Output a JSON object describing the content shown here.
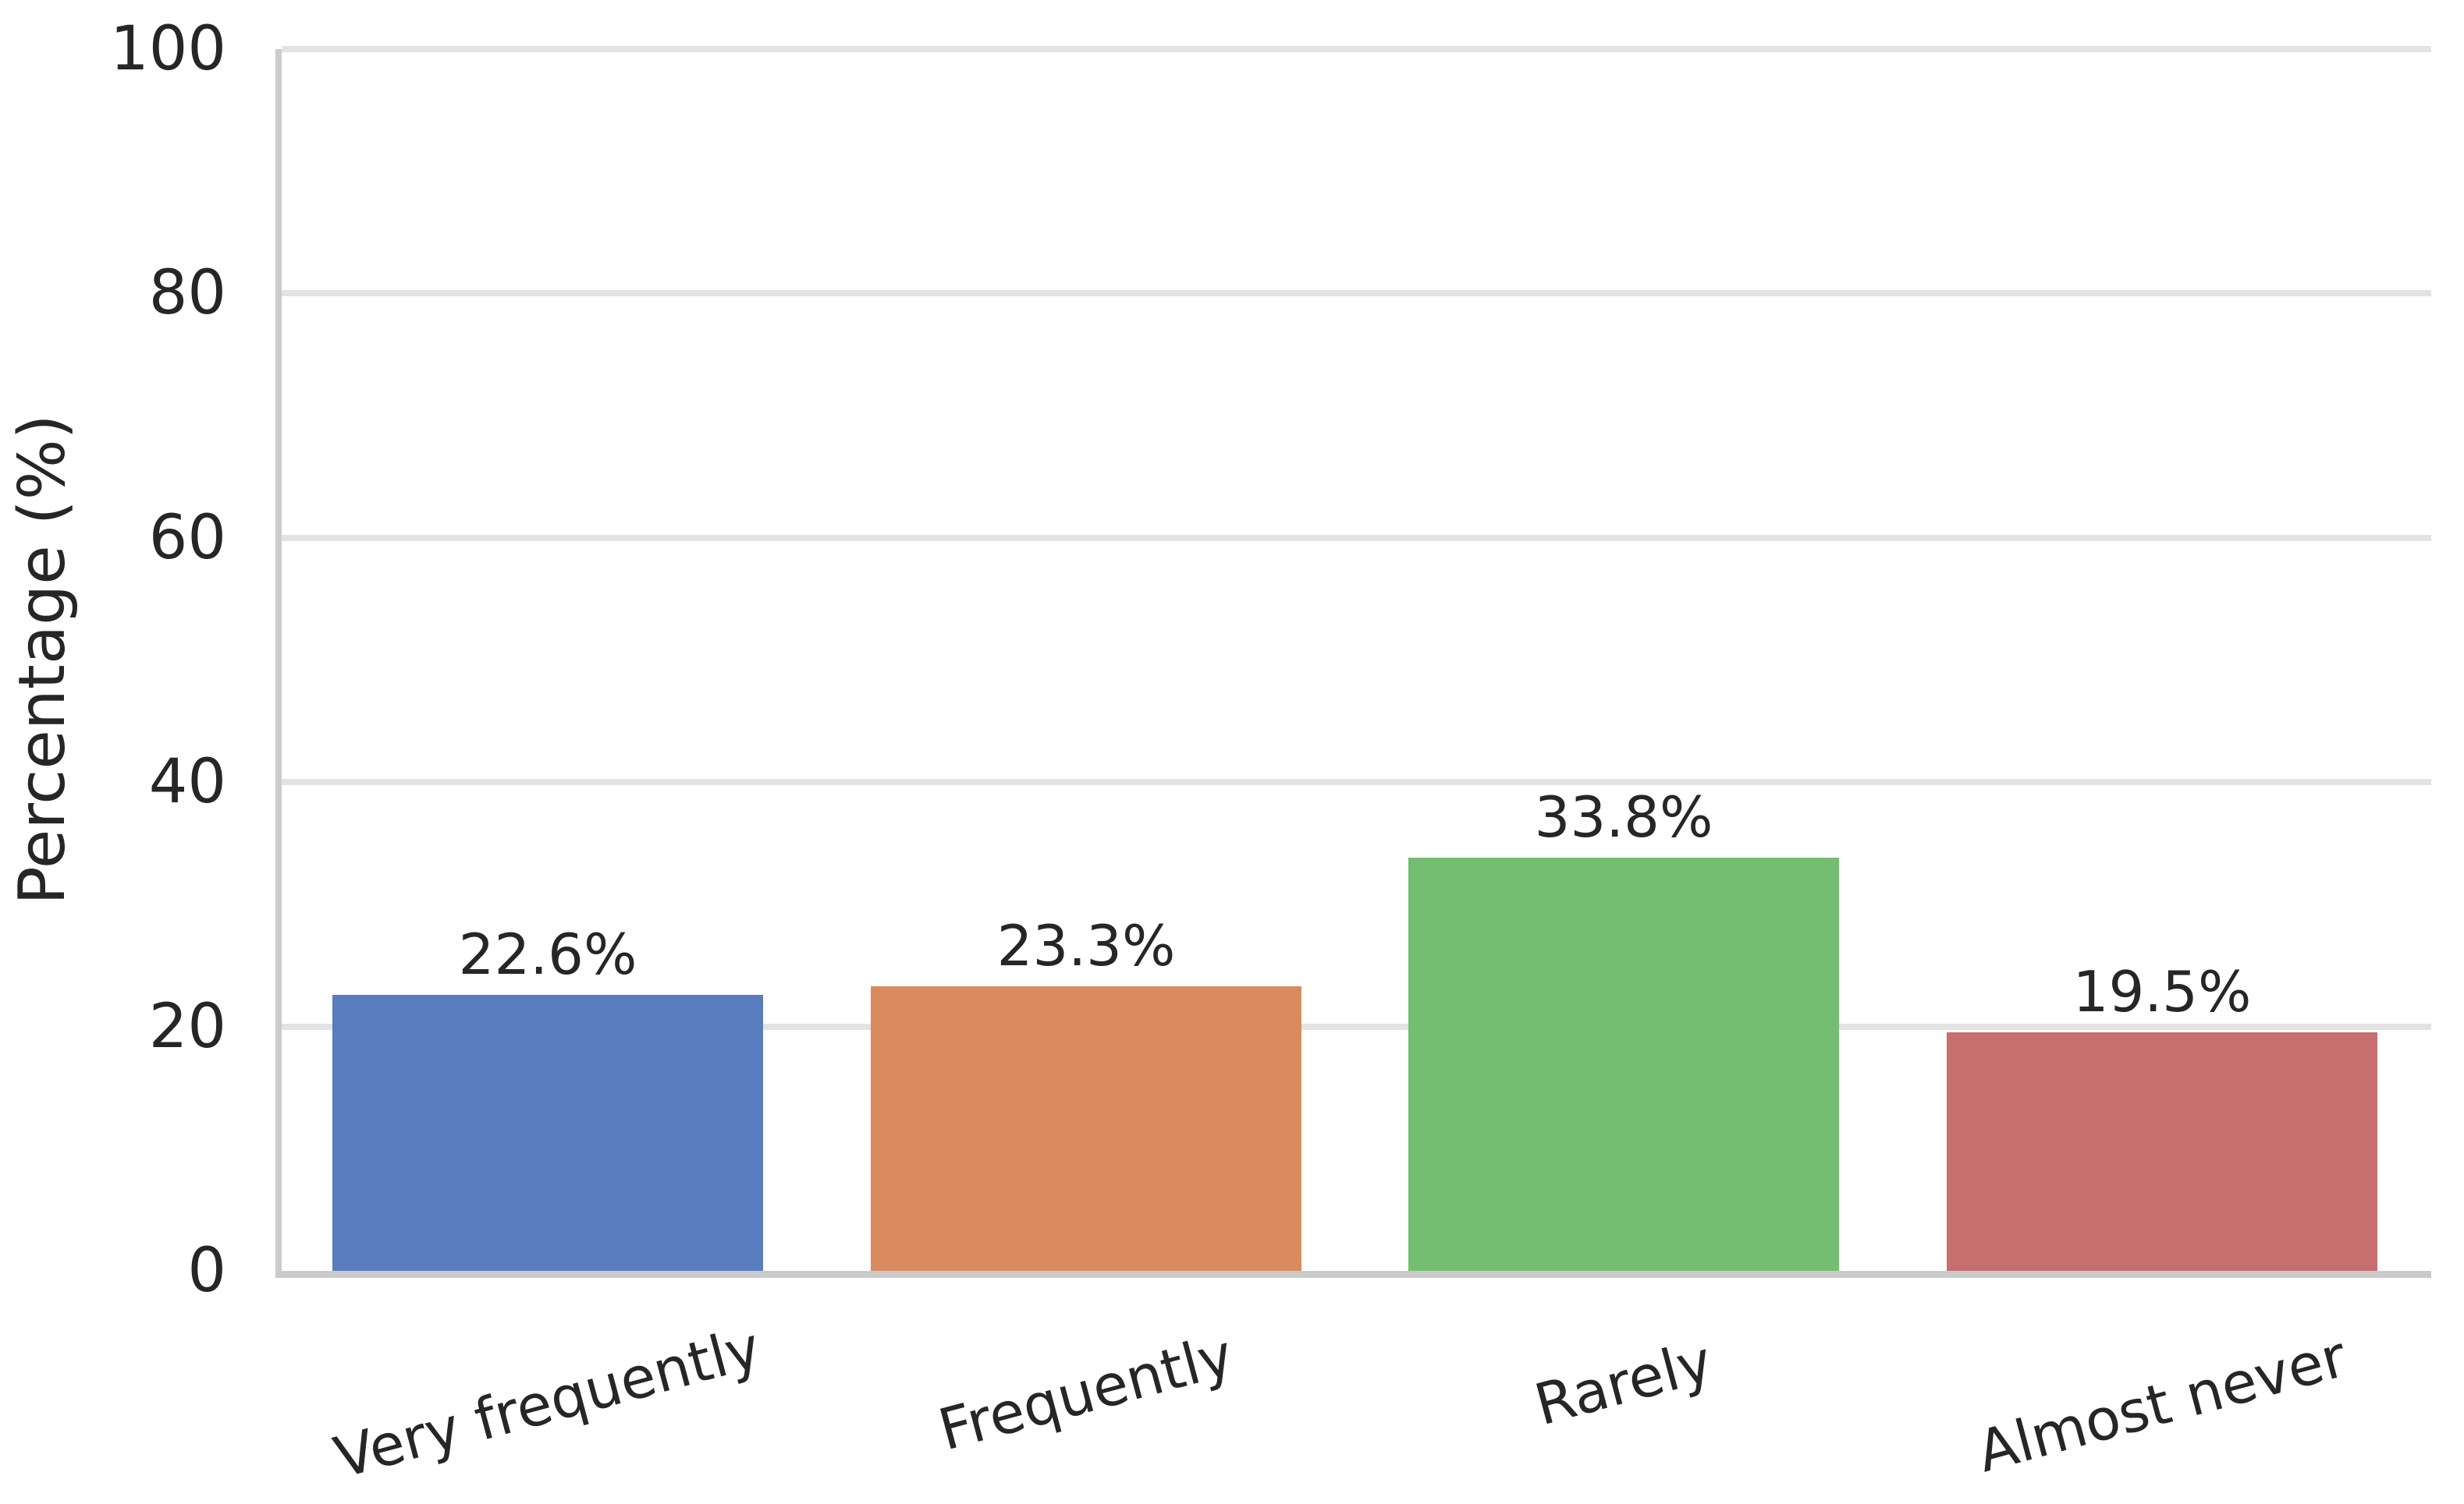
{
  "chart_data": {
    "type": "bar",
    "categories": [
      "Very frequently",
      "Frequently",
      "Rarely",
      "Almost never"
    ],
    "values": [
      22.6,
      23.3,
      33.8,
      19.5
    ],
    "bar_labels": [
      "22.6%",
      "23.3%",
      "33.8%",
      "19.5%"
    ],
    "title": "",
    "xlabel": "",
    "ylabel": "Percentage (%)",
    "ylim": [
      0,
      100
    ],
    "yticks": [
      0,
      20,
      40,
      60,
      80,
      100
    ],
    "grid": "horizontal",
    "legend": "none",
    "bar_colors": [
      "#597CBE",
      "#D98B5F",
      "#74BE72",
      "#C76F6E"
    ],
    "spine_color": "#CBCBCB",
    "grid_color": "#E3E3E3",
    "text_color": "#262626",
    "background_color": "#FFFFFF"
  }
}
